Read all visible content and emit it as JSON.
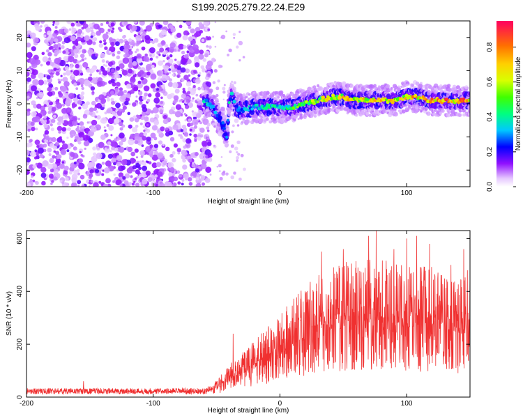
{
  "title": "S199.2025.279.22.24.E29",
  "chart_data": [
    {
      "type": "heatmap",
      "xlabel": "Height of straight line (km)",
      "ylabel": "Frequency (Hz)",
      "xlim": [
        -200,
        150
      ],
      "ylim": [
        -25,
        25
      ],
      "x_ticks": [
        -200,
        -100,
        0,
        100
      ],
      "x_tick_labels": [
        "-200",
        "-100",
        "0",
        "100"
      ],
      "y_ticks": [
        -20,
        -10,
        0,
        10,
        20
      ],
      "y_tick_labels": [
        "-20",
        "-10",
        "0",
        "10",
        "20"
      ],
      "colorbar": {
        "label": "Normalized spectral amplitude",
        "range": [
          0,
          0.95
        ],
        "ticks": [
          0.0,
          0.2,
          0.4,
          0.6,
          0.8
        ],
        "tick_labels": [
          "0.0",
          "0.2",
          "0.4",
          "0.6",
          "0.8"
        ]
      },
      "noise_region_x": [
        -200,
        -55
      ],
      "signal_ridge": {
        "x": [
          -60,
          -55,
          -50,
          -45,
          -42,
          -40,
          -38,
          -35,
          -30,
          -20,
          -10,
          0,
          10,
          20,
          30,
          40,
          50,
          60,
          70,
          80,
          90,
          100,
          110,
          120,
          130,
          140,
          150
        ],
        "freq_hz": [
          1,
          0,
          -3,
          -6,
          -10,
          0,
          3,
          -1,
          -2,
          -1,
          -1,
          -1,
          -1,
          0,
          1,
          2,
          2,
          1,
          1,
          1,
          1,
          2,
          2,
          1,
          1,
          1,
          1
        ],
        "amplitude": [
          0.4,
          0.45,
          0.3,
          0.3,
          0.35,
          0.45,
          0.4,
          0.35,
          0.4,
          0.4,
          0.45,
          0.5,
          0.55,
          0.6,
          0.7,
          0.72,
          0.8,
          0.78,
          0.8,
          0.82,
          0.8,
          0.85,
          0.85,
          0.88,
          0.9,
          0.9,
          0.9
        ]
      }
    },
    {
      "type": "line",
      "xlabel": "Height of straight line (km)",
      "ylabel": "SNR (10 * v/v)",
      "xlim": [
        -200,
        150
      ],
      "ylim": [
        0,
        630
      ],
      "x_ticks": [
        -200,
        -100,
        0,
        100
      ],
      "x_tick_labels": [
        "-200",
        "-100",
        "0",
        "100"
      ],
      "y_ticks": [
        0,
        200,
        400,
        600
      ],
      "y_tick_labels": [
        "0",
        "200",
        "400",
        "600"
      ],
      "color": "#f03030",
      "series": [
        {
          "name": "SNR",
          "envelope_x": [
            -200,
            -150,
            -100,
            -60,
            -50,
            -40,
            -30,
            -20,
            -10,
            0,
            10,
            20,
            30,
            40,
            50,
            60,
            70,
            80,
            90,
            100,
            110,
            120,
            130,
            140,
            150
          ],
          "envelope_y": [
            25,
            25,
            25,
            25,
            40,
            80,
            110,
            140,
            170,
            200,
            240,
            270,
            300,
            320,
            330,
            340,
            340,
            340,
            330,
            330,
            320,
            320,
            310,
            300,
            300
          ],
          "peak_x": [
            -155,
            -37,
            20,
            33,
            50,
            70,
            76,
            90,
            100,
            108,
            118,
            135,
            145,
            148
          ],
          "peak_y": [
            60,
            240,
            400,
            550,
            560,
            610,
            630,
            560,
            600,
            610,
            580,
            500,
            560,
            480
          ]
        }
      ]
    }
  ]
}
